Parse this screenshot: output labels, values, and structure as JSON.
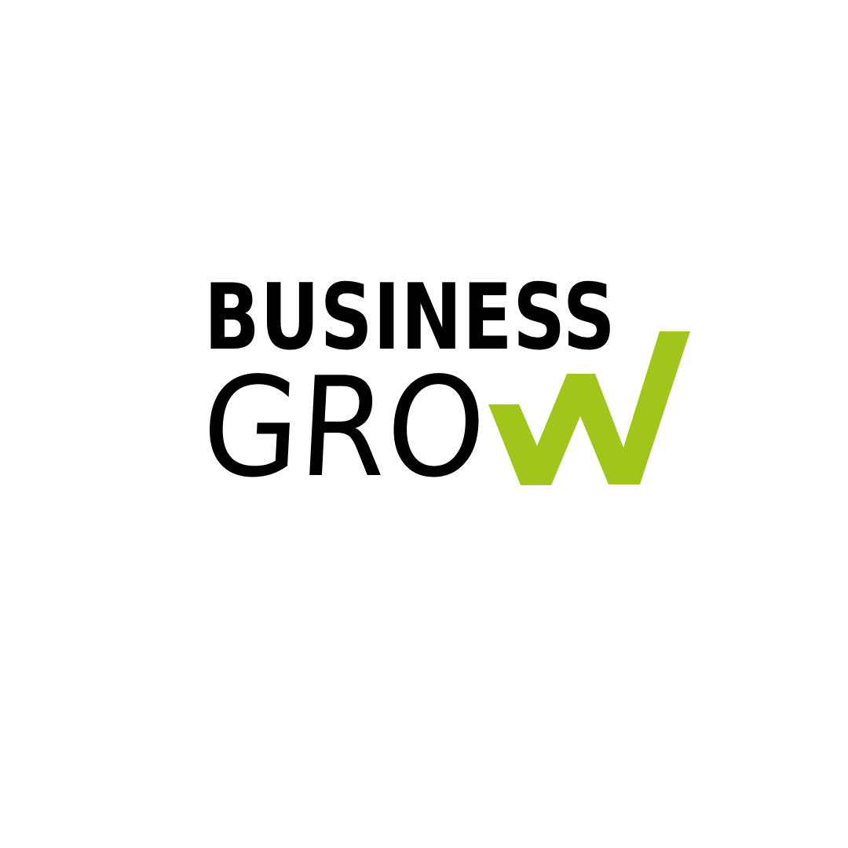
{
  "logo": {
    "line1": "BUSINESS",
    "line2_prefix": "GRO",
    "line2_accent": "W",
    "colors": {
      "text": "#000000",
      "accent": "#a2c51c",
      "background": "#ffffff"
    }
  }
}
